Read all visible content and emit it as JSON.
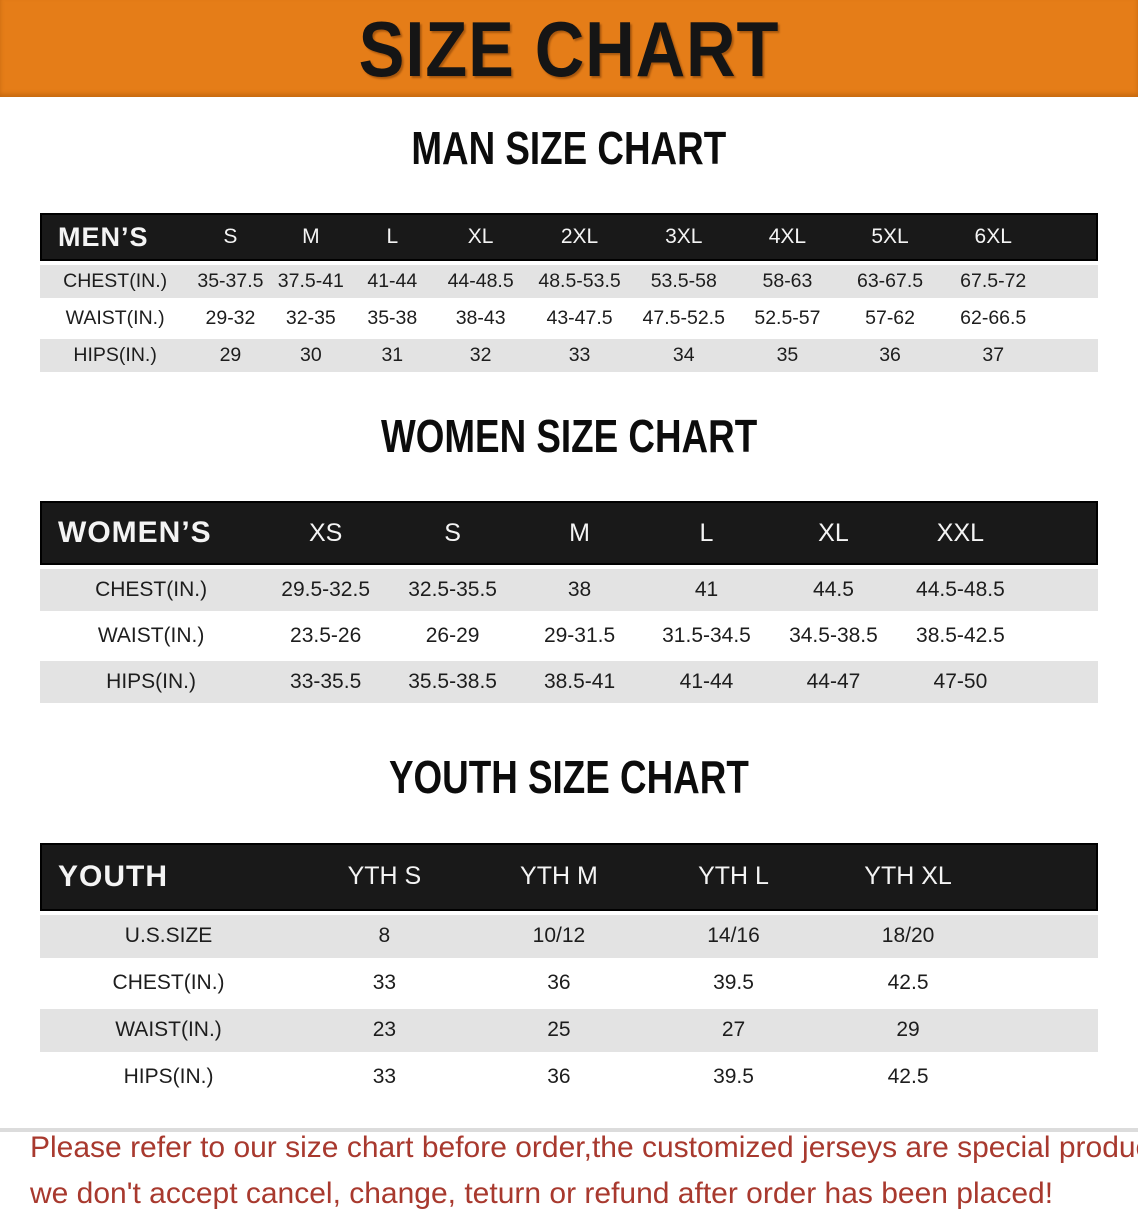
{
  "banner": {
    "title": "SIZE CHART"
  },
  "colors": {
    "banner_bg": "#e57d18",
    "header_bar": "#191919",
    "row_alt": "#e3e3e3",
    "disclaimer_text": "#a8392e"
  },
  "sections": [
    {
      "title": "MAN SIZE CHART",
      "header_label": "MEN’S",
      "columns": [
        "S",
        "M",
        "L",
        "XL",
        "2XL",
        "3XL",
        "4XL",
        "5XL",
        "6XL"
      ],
      "rows": [
        {
          "label": "CHEST(IN.)",
          "values": [
            "35-37.5",
            "37.5-41",
            "41-44",
            "44-48.5",
            "48.5-53.5",
            "53.5-58",
            "58-63",
            "63-67.5",
            "67.5-72"
          ]
        },
        {
          "label": "WAIST(IN.)",
          "values": [
            "29-32",
            "32-35",
            "35-38",
            "38-43",
            "43-47.5",
            "47.5-52.5",
            "52.5-57",
            "57-62",
            "62-66.5"
          ]
        },
        {
          "label": "HIPS(IN.)",
          "values": [
            "29",
            "30",
            "31",
            "32",
            "33",
            "34",
            "35",
            "36",
            "37"
          ]
        }
      ]
    },
    {
      "title": "WOMEN SIZE CHART",
      "header_label": "WOMEN’S",
      "columns": [
        "XS",
        "S",
        "M",
        "L",
        "XL",
        "XXL"
      ],
      "rows": [
        {
          "label": "CHEST(IN.)",
          "values": [
            "29.5-32.5",
            "32.5-35.5",
            "38",
            "41",
            "44.5",
            "44.5-48.5"
          ]
        },
        {
          "label": "WAIST(IN.)",
          "values": [
            "23.5-26",
            "26-29",
            "29-31.5",
            "31.5-34.5",
            "34.5-38.5",
            "38.5-42.5"
          ]
        },
        {
          "label": "HIPS(IN.)",
          "values": [
            "33-35.5",
            "35.5-38.5",
            "38.5-41",
            "41-44",
            "44-47",
            "47-50"
          ]
        }
      ]
    },
    {
      "title": "YOUTH SIZE CHART",
      "header_label": "YOUTH",
      "columns": [
        "YTH S",
        "YTH M",
        "YTH L",
        "YTH XL"
      ],
      "rows": [
        {
          "label": "U.S.SIZE",
          "values": [
            "8",
            "10/12",
            "14/16",
            "18/20"
          ]
        },
        {
          "label": "CHEST(IN.)",
          "values": [
            "33",
            "36",
            "39.5",
            "42.5"
          ]
        },
        {
          "label": "WAIST(IN.)",
          "values": [
            "23",
            "25",
            "27",
            "29"
          ]
        },
        {
          "label": "HIPS(IN.)",
          "values": [
            "33",
            "36",
            "39.5",
            "42.5"
          ]
        }
      ]
    }
  ],
  "disclaimer": {
    "line1": "Please refer to our size chart before order,the customized jerseys are special products,",
    "line2": "we don't accept cancel, change, teturn or refund after order has been placed!"
  }
}
